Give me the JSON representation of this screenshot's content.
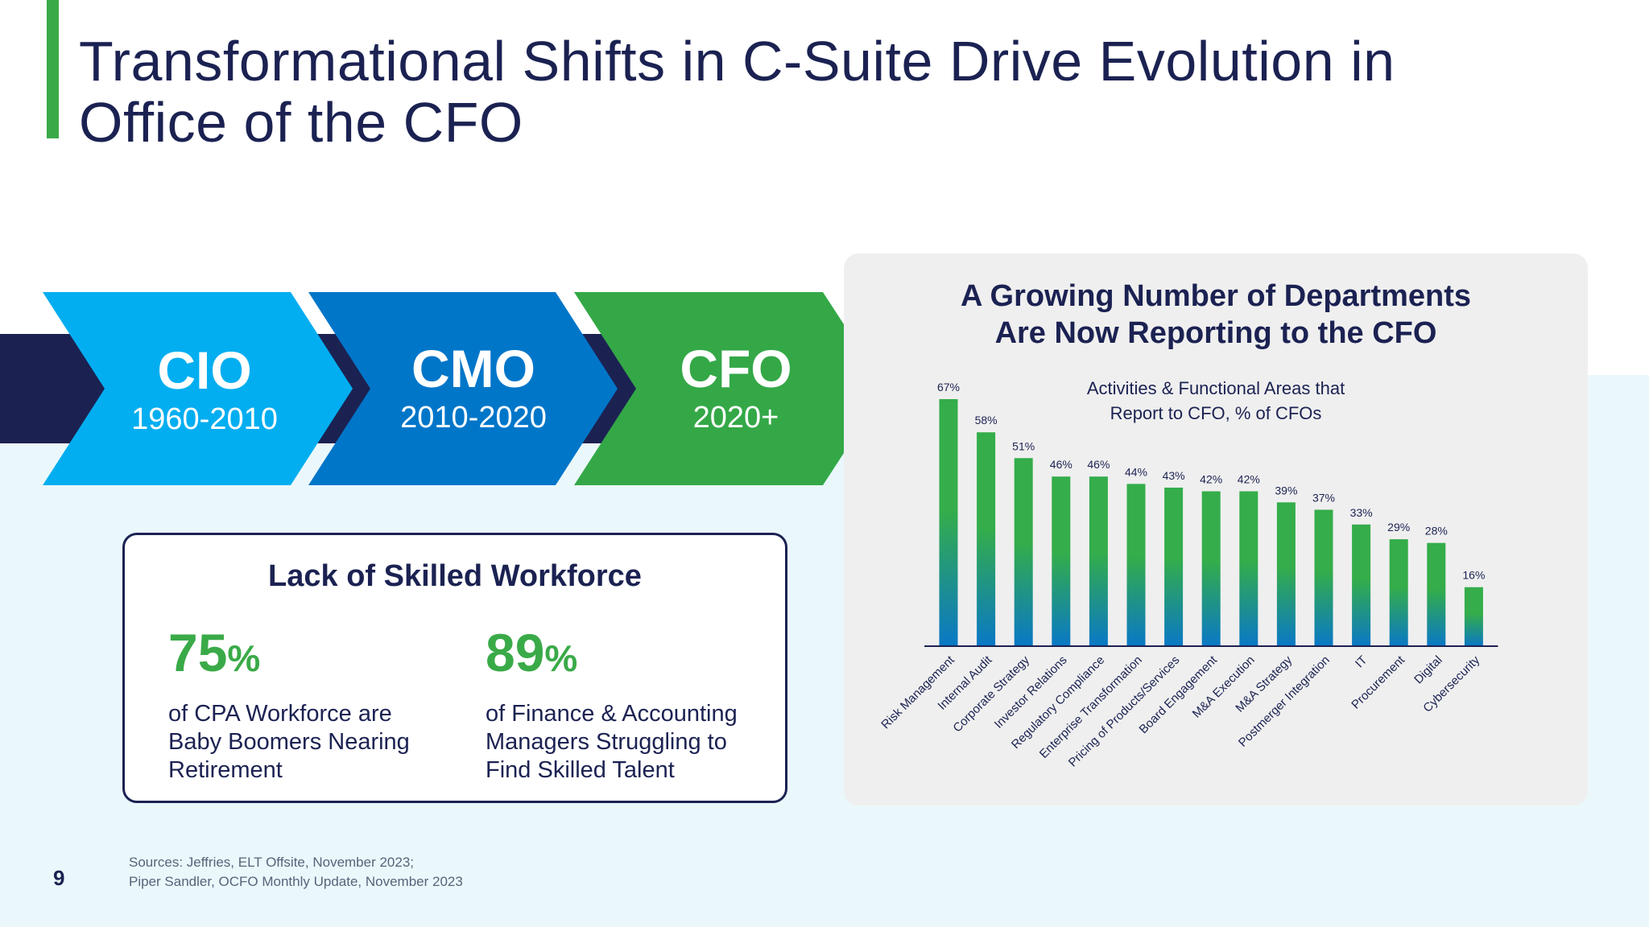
{
  "slide": {
    "title_line1": "Transformational Shifts in C-Suite Drive Evolution in",
    "title_line2": "Office of the CFO",
    "page_number": "9",
    "sources_line1": "Sources: Jeffries, ELT Offsite, November 2023;",
    "sources_line2": "Piper Sandler, OCFO Monthly Update, November 2023"
  },
  "timeline": [
    {
      "role": "CIO",
      "years": "1960-2010",
      "color": "#03aef0"
    },
    {
      "role": "CMO",
      "years": "2010-2020",
      "color": "#0076c9"
    },
    {
      "role": "CFO",
      "years": "2020+",
      "color": "#34a847"
    }
  ],
  "workforce": {
    "title": "Lack of Skilled Workforce",
    "stats": [
      {
        "value": "75",
        "unit": "%",
        "line1": "of CPA Workforce are",
        "line2": "Baby Boomers Nearing",
        "line3": "Retirement"
      },
      {
        "value": "89",
        "unit": "%",
        "line1": "of Finance & Accounting",
        "line2": "Managers Struggling to",
        "line3": "Find Skilled Talent"
      }
    ]
  },
  "chart_panel": {
    "title_line1": "A Growing Number of Departments",
    "title_line2": "Are Now Reporting to the CFO",
    "subtitle_line1": "Activities & Functional Areas that",
    "subtitle_line2": "Report to CFO, % of CFOs"
  },
  "chart_data": {
    "type": "bar",
    "categories": [
      "Risk Management",
      "Internal Audit",
      "Corporate Strategy",
      "Investor Relations",
      "Regulatory Compliance",
      "Enterprise Transformation",
      "Pricing of Products/Services",
      "Board Engagement",
      "M&A Execution",
      "M&A Strategy",
      "Postmerger Integration",
      "IT",
      "Procurement",
      "Digital",
      "Cybersecurity"
    ],
    "values": [
      67,
      58,
      51,
      46,
      46,
      44,
      43,
      42,
      42,
      39,
      37,
      33,
      29,
      28,
      16
    ],
    "value_labels": [
      "67%",
      "58%",
      "51%",
      "46%",
      "46%",
      "44%",
      "43%",
      "42%",
      "42%",
      "39%",
      "37%",
      "33%",
      "29%",
      "28%",
      "16%"
    ],
    "ylim": [
      0,
      70
    ],
    "grid": false,
    "bar_gradient_top": "#34ad4a",
    "bar_gradient_bottom": "#0a78c6"
  }
}
